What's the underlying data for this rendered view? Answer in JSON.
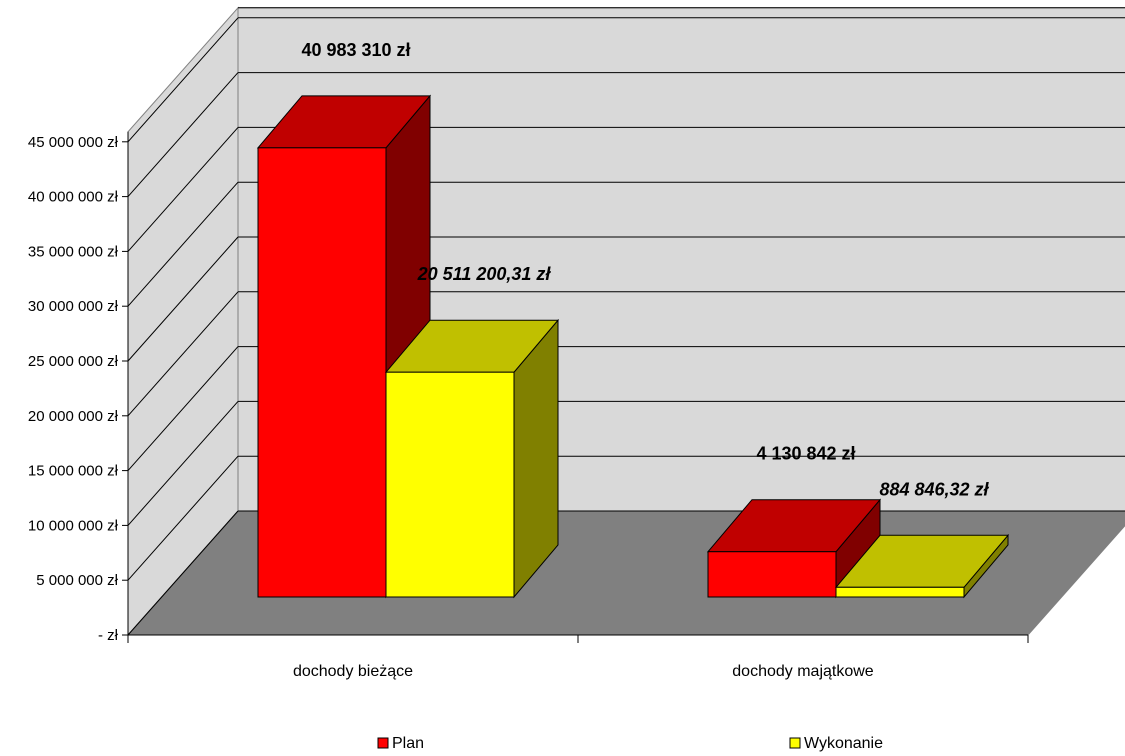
{
  "chart_data": {
    "type": "bar",
    "categories": [
      "dochody bieżące",
      "dochody majątkowe"
    ],
    "series": [
      {
        "name": "Plan",
        "values": [
          40983310,
          4130842
        ],
        "labels": [
          "40 983 310 zł",
          "4 130 842 zł"
        ],
        "color": "#ff0000",
        "label_style": "bold"
      },
      {
        "name": "Wykonanie",
        "values": [
          20511200.31,
          884846.32
        ],
        "labels": [
          "20 511 200,31 zł",
          "884 846,32 zł"
        ],
        "color": "#ffff00",
        "label_style": "bold-italic"
      }
    ],
    "y_ticks": [
      {
        "value": 0,
        "label": "-    zł"
      },
      {
        "value": 5000000,
        "label": "5 000 000 zł"
      },
      {
        "value": 10000000,
        "label": "10 000 000 zł"
      },
      {
        "value": 15000000,
        "label": "15 000 000 zł"
      },
      {
        "value": 20000000,
        "label": "20 000 000 zł"
      },
      {
        "value": 25000000,
        "label": "25 000 000 zł"
      },
      {
        "value": 30000000,
        "label": "30 000 000 zł"
      },
      {
        "value": 35000000,
        "label": "35 000 000 zł"
      },
      {
        "value": 40000000,
        "label": "40 000 000 zł"
      },
      {
        "value": 45000000,
        "label": "45 000 000 zł"
      }
    ],
    "ylim": [
      0,
      45000000
    ],
    "grid": true,
    "three_d": true,
    "legend_position": "bottom",
    "title": "",
    "xlabel": "",
    "ylabel": "",
    "colors": {
      "wall": "#d9d9d9",
      "floor": "#808080",
      "plan_front": "#ff0000",
      "plan_top": "#c00000",
      "plan_side": "#800000",
      "wyk_front": "#ffff00",
      "wyk_top": "#c0c000",
      "wyk_side": "#808000"
    }
  }
}
